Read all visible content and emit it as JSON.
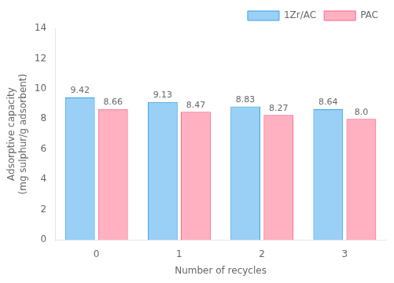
{
  "chart_data": {
    "type": "bar",
    "categories": [
      0,
      1,
      2,
      3
    ],
    "series": [
      {
        "name": "1Zr/AC",
        "values": [
          9.42,
          9.13,
          8.83,
          8.64
        ]
      },
      {
        "name": "PAC",
        "values": [
          8.66,
          8.47,
          8.27,
          8.0
        ],
        "value_labels": [
          "8.66",
          "8.47",
          "8.27",
          "8.0"
        ]
      }
    ],
    "xlabel": "Number of recycles",
    "ylabel": "Adsorptive capacity\n(mg sulphur/g adsorbent)",
    "ylim": [
      0,
      14
    ],
    "yticks": [
      0,
      2,
      4,
      6,
      8,
      10,
      12,
      14
    ],
    "grid": false,
    "legend": "upper right",
    "data_labels": true
  }
}
